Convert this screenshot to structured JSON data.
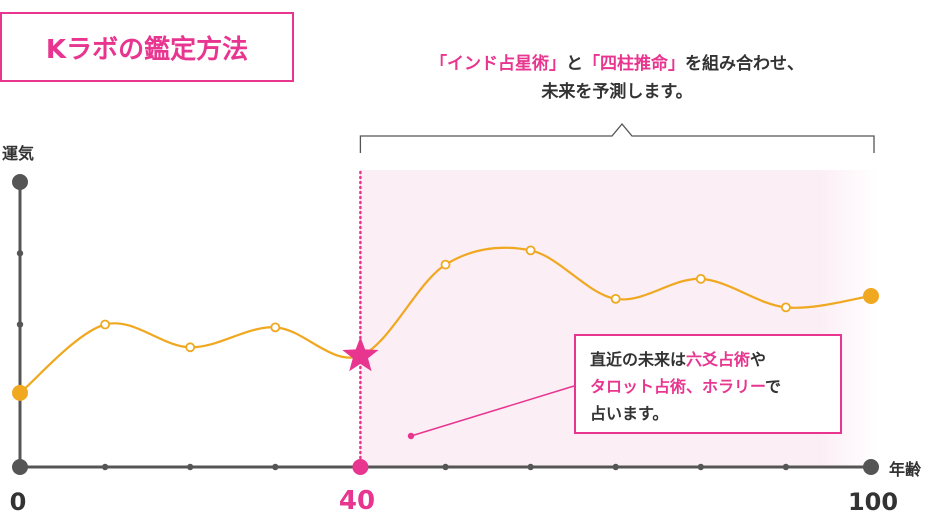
{
  "title": "Kラボの鑑定方法",
  "headline": {
    "line1": [
      {
        "text": "「インド占星術」",
        "accent": true
      },
      {
        "text": "と",
        "accent": false
      },
      {
        "text": "「四柱推命」",
        "accent": true
      },
      {
        "text": "を組み合わせ、",
        "accent": false
      }
    ],
    "line2": "未来を予測します。"
  },
  "callout": {
    "line1": [
      {
        "text": "直近の未来は",
        "accent": false
      },
      {
        "text": "六爻占術",
        "accent": true
      },
      {
        "text": "や",
        "accent": false
      }
    ],
    "line2": [
      {
        "text": "タロット占術、ホラリー",
        "accent": true
      },
      {
        "text": "で",
        "accent": false
      }
    ],
    "line3": "占います。"
  },
  "axes": {
    "y_label": "運気",
    "x_label": "年齢",
    "x_ticks": [
      {
        "value": 0,
        "label": "0",
        "accent": false
      },
      {
        "value": 40,
        "label": "40",
        "accent": true
      },
      {
        "value": 100,
        "label": "100",
        "accent": false
      }
    ]
  },
  "colors": {
    "accent": "#e8358f",
    "line": "#f0a820",
    "axis": "#555555",
    "text": "#333333",
    "shade": "#fbeef5"
  },
  "chart_data": {
    "type": "line",
    "xlabel": "年齢",
    "ylabel": "運気",
    "xlim": [
      0,
      100
    ],
    "ylim": [
      0,
      100
    ],
    "grid": false,
    "marked_age": 40,
    "series": [
      {
        "x": [
          0,
          10,
          20,
          30,
          40,
          50,
          60,
          70,
          80,
          90,
          100
        ],
        "y": [
          26,
          50,
          42,
          49,
          39,
          71,
          76,
          59,
          66,
          56,
          60
        ]
      }
    ]
  }
}
